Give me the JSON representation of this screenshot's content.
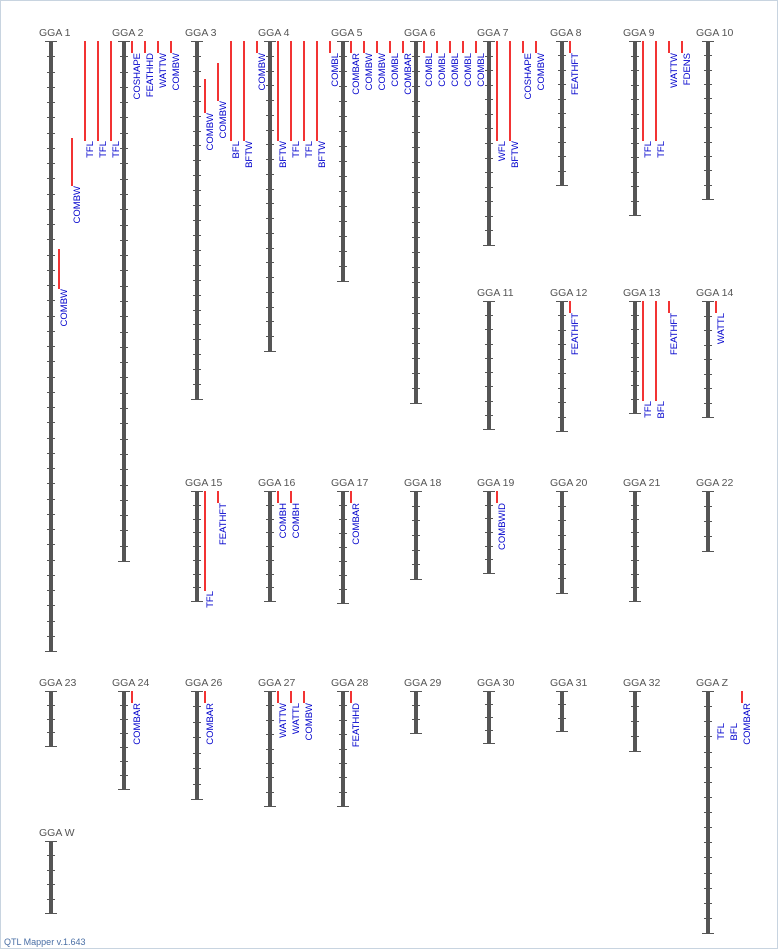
{
  "app": {
    "version_label": "QTL Mapper v.1.643"
  },
  "colors": {
    "chromosome": "#555555",
    "tick": "#555555",
    "qtl_bar": "#ee0000",
    "qtl_text": "#0000cc",
    "chr_text": "#555555"
  },
  "chromosomes": [
    {
      "id": "GGA 1",
      "label": "GGA 1",
      "row": 0,
      "col": 0,
      "length": 610,
      "ticks": 40,
      "qtls": [
        {
          "trait": "TFL",
          "start": 0,
          "end": 100,
          "offset": 34
        },
        {
          "trait": "TFL",
          "start": 0,
          "end": 100,
          "offset": 47
        },
        {
          "trait": "TFL",
          "start": 0,
          "end": 100,
          "offset": 60
        },
        {
          "trait": "COMBW",
          "start": 97,
          "end": 145,
          "offset": 21
        },
        {
          "trait": "COMBW",
          "start": 208,
          "end": 248,
          "offset": 8
        }
      ]
    },
    {
      "id": "GGA 2",
      "label": "GGA 2",
      "row": 0,
      "col": 1,
      "length": 520,
      "ticks": 34,
      "qtls": [
        {
          "trait": "COSHAPE",
          "start": 0,
          "end": 12,
          "offset": 8
        },
        {
          "trait": "FEATHHD",
          "start": 0,
          "end": 12,
          "offset": 21
        },
        {
          "trait": "WATTW",
          "start": 0,
          "end": 12,
          "offset": 34
        },
        {
          "trait": "COMBW",
          "start": 0,
          "end": 12,
          "offset": 47
        }
      ]
    },
    {
      "id": "GGA 3",
      "label": "GGA 3",
      "row": 0,
      "col": 2,
      "length": 358,
      "ticks": 24,
      "qtls": [
        {
          "trait": "COMBW",
          "start": 38,
          "end": 72,
          "offset": 8
        },
        {
          "trait": "COMBW",
          "start": 22,
          "end": 60,
          "offset": 21
        },
        {
          "trait": "BFL",
          "start": 0,
          "end": 100,
          "offset": 34
        },
        {
          "trait": "BFTW",
          "start": 0,
          "end": 100,
          "offset": 47
        },
        {
          "trait": "COMBW",
          "start": 0,
          "end": 12,
          "offset": 60
        }
      ]
    },
    {
      "id": "GGA 4",
      "label": "GGA 4",
      "row": 0,
      "col": 3,
      "length": 310,
      "ticks": 21,
      "qtls": [
        {
          "trait": "BFTW",
          "start": 0,
          "end": 100,
          "offset": 8
        },
        {
          "trait": "TFL",
          "start": 0,
          "end": 100,
          "offset": 21
        },
        {
          "trait": "TFL",
          "start": 0,
          "end": 100,
          "offset": 34
        },
        {
          "trait": "BFTW",
          "start": 0,
          "end": 100,
          "offset": 47
        },
        {
          "trait": "COMBL",
          "start": 0,
          "end": 12,
          "offset": 60
        }
      ]
    },
    {
      "id": "GGA 5",
      "label": "GGA 5",
      "row": 0,
      "col": 4,
      "length": 240,
      "ticks": 16,
      "qtls": [
        {
          "trait": "COMBAR",
          "start": 0,
          "end": 12,
          "offset": 8
        },
        {
          "trait": "COMBW",
          "start": 0,
          "end": 12,
          "offset": 21
        },
        {
          "trait": "COMBW",
          "start": 0,
          "end": 12,
          "offset": 34
        },
        {
          "trait": "COMBL",
          "start": 0,
          "end": 12,
          "offset": 47
        },
        {
          "trait": "COMBAR",
          "start": 0,
          "end": 12,
          "offset": 60
        }
      ]
    },
    {
      "id": "GGA 6",
      "label": "GGA 6",
      "row": 0,
      "col": 5,
      "length": 362,
      "ticks": 24,
      "qtls": [
        {
          "trait": "COMBL",
          "start": 0,
          "end": 12,
          "offset": 8
        },
        {
          "trait": "COMBL",
          "start": 0,
          "end": 12,
          "offset": 21
        },
        {
          "trait": "COMBL",
          "start": 0,
          "end": 12,
          "offset": 34
        },
        {
          "trait": "COMBL",
          "start": 0,
          "end": 12,
          "offset": 47
        },
        {
          "trait": "COMBL",
          "start": 0,
          "end": 12,
          "offset": 60
        }
      ]
    },
    {
      "id": "GGA 7",
      "label": "GGA 7",
      "row": 0,
      "col": 6,
      "length": 204,
      "ticks": 14,
      "qtls": [
        {
          "trait": "WFL",
          "start": 0,
          "end": 100,
          "offset": 8
        },
        {
          "trait": "BFTW",
          "start": 0,
          "end": 100,
          "offset": 21
        },
        {
          "trait": "COSHAPE",
          "start": 0,
          "end": 12,
          "offset": 34
        },
        {
          "trait": "COMBW",
          "start": 0,
          "end": 12,
          "offset": 47
        }
      ]
    },
    {
      "id": "GGA 8",
      "label": "GGA 8",
      "row": 0,
      "col": 7,
      "length": 144,
      "ticks": 10,
      "qtls": [
        {
          "trait": "FEATHFT",
          "start": 0,
          "end": 12,
          "offset": 8
        }
      ]
    },
    {
      "id": "GGA 9",
      "label": "GGA 9",
      "row": 0,
      "col": 8,
      "length": 174,
      "ticks": 12,
      "qtls": [
        {
          "trait": "TFL",
          "start": 0,
          "end": 100,
          "offset": 8
        },
        {
          "trait": "TFL",
          "start": 0,
          "end": 100,
          "offset": 21
        },
        {
          "trait": "WATTW",
          "start": 0,
          "end": 12,
          "offset": 34
        },
        {
          "trait": "FDENS",
          "start": 0,
          "end": 12,
          "offset": 47
        }
      ]
    },
    {
      "id": "GGA 10",
      "label": "GGA 10",
      "row": 0,
      "col": 9,
      "length": 158,
      "ticks": 11,
      "qtls": []
    },
    {
      "id": "GGA 11",
      "label": "GGA 11",
      "row": 1,
      "col": 6,
      "length": 128,
      "ticks": 9,
      "qtls": []
    },
    {
      "id": "GGA 12",
      "label": "GGA 12",
      "row": 1,
      "col": 7,
      "length": 130,
      "ticks": 9,
      "qtls": [
        {
          "trait": "FEATHFT",
          "start": 0,
          "end": 12,
          "offset": 8
        }
      ]
    },
    {
      "id": "GGA 13",
      "label": "GGA 13",
      "row": 1,
      "col": 8,
      "length": 112,
      "ticks": 8,
      "qtls": [
        {
          "trait": "TFL",
          "start": 0,
          "end": 100,
          "offset": 8
        },
        {
          "trait": "BFL",
          "start": 0,
          "end": 100,
          "offset": 21
        },
        {
          "trait": "FEATHFT",
          "start": 0,
          "end": 12,
          "offset": 34
        }
      ]
    },
    {
      "id": "GGA 14",
      "label": "GGA 14",
      "row": 1,
      "col": 9,
      "length": 116,
      "ticks": 8,
      "qtls": [
        {
          "trait": "WATTL",
          "start": 0,
          "end": 12,
          "offset": 8
        }
      ]
    },
    {
      "id": "GGA 15",
      "label": "GGA 15",
      "row": 2,
      "col": 2,
      "length": 110,
      "ticks": 8,
      "qtls": [
        {
          "trait": "TFL",
          "start": 0,
          "end": 100,
          "offset": 8
        },
        {
          "trait": "FEATHFT",
          "start": 0,
          "end": 12,
          "offset": 21
        }
      ]
    },
    {
      "id": "GGA 16",
      "label": "GGA 16",
      "row": 2,
      "col": 3,
      "length": 110,
      "ticks": 8,
      "qtls": [
        {
          "trait": "COMBH",
          "start": 0,
          "end": 12,
          "offset": 8
        },
        {
          "trait": "COMBH",
          "start": 0,
          "end": 12,
          "offset": 21
        }
      ]
    },
    {
      "id": "GGA 17",
      "label": "GGA 17",
      "row": 2,
      "col": 4,
      "length": 112,
      "ticks": 8,
      "qtls": [
        {
          "trait": "COMBAR",
          "start": 0,
          "end": 12,
          "offset": 8
        }
      ]
    },
    {
      "id": "GGA 18",
      "label": "GGA 18",
      "row": 2,
      "col": 5,
      "length": 88,
      "ticks": 6,
      "qtls": []
    },
    {
      "id": "GGA 19",
      "label": "GGA 19",
      "row": 2,
      "col": 6,
      "length": 82,
      "ticks": 6,
      "qtls": [
        {
          "trait": "COMBWID",
          "start": 0,
          "end": 12,
          "offset": 8
        }
      ]
    },
    {
      "id": "GGA 20",
      "label": "GGA 20",
      "row": 2,
      "col": 7,
      "length": 102,
      "ticks": 7,
      "qtls": []
    },
    {
      "id": "GGA 21",
      "label": "GGA 21",
      "row": 2,
      "col": 8,
      "length": 110,
      "ticks": 8,
      "qtls": []
    },
    {
      "id": "GGA 22",
      "label": "GGA 22",
      "row": 2,
      "col": 9,
      "length": 60,
      "ticks": 4,
      "qtls": []
    },
    {
      "id": "GGA 23",
      "label": "GGA 23",
      "row": 3,
      "col": 0,
      "length": 55,
      "ticks": 4,
      "qtls": []
    },
    {
      "id": "GGA 24",
      "label": "GGA 24",
      "row": 3,
      "col": 1,
      "length": 98,
      "ticks": 7,
      "qtls": [
        {
          "trait": "COMBAR",
          "start": 0,
          "end": 12,
          "offset": 8
        }
      ]
    },
    {
      "id": "GGA 26",
      "label": "GGA 26",
      "row": 3,
      "col": 2,
      "length": 108,
      "ticks": 7,
      "qtls": [
        {
          "trait": "COMBAR",
          "start": 0,
          "end": 12,
          "offset": 8
        }
      ]
    },
    {
      "id": "GGA 27",
      "label": "GGA 27",
      "row": 3,
      "col": 3,
      "length": 115,
      "ticks": 8,
      "qtls": [
        {
          "trait": "WATTW",
          "start": 0,
          "end": 12,
          "offset": 8
        },
        {
          "trait": "WATTL",
          "start": 0,
          "end": 12,
          "offset": 21
        },
        {
          "trait": "COMBW",
          "start": 0,
          "end": 12,
          "offset": 34
        }
      ]
    },
    {
      "id": "GGA 28",
      "label": "GGA 28",
      "row": 3,
      "col": 4,
      "length": 115,
      "ticks": 8,
      "qtls": [
        {
          "trait": "FEATHHD",
          "start": 0,
          "end": 12,
          "offset": 8
        }
      ]
    },
    {
      "id": "GGA 29",
      "label": "GGA 29",
      "row": 3,
      "col": 5,
      "length": 42,
      "ticks": 3,
      "qtls": []
    },
    {
      "id": "GGA 30",
      "label": "GGA 30",
      "row": 3,
      "col": 6,
      "length": 52,
      "ticks": 4,
      "qtls": []
    },
    {
      "id": "GGA 31",
      "label": "GGA 31",
      "row": 3,
      "col": 7,
      "length": 40,
      "ticks": 3,
      "qtls": []
    },
    {
      "id": "GGA 32",
      "label": "GGA 32",
      "row": 3,
      "col": 8,
      "length": 60,
      "ticks": 4,
      "qtls": []
    },
    {
      "id": "GGA Z",
      "label": "GGA Z",
      "row": 3,
      "col": 9,
      "length": 242,
      "ticks": 16,
      "qtls": [
        {
          "trait": "TFL",
          "start": 32,
          "end": 32,
          "offset": 8
        },
        {
          "trait": "BFL",
          "start": 32,
          "end": 32,
          "offset": 21
        },
        {
          "trait": "COMBAR",
          "start": 0,
          "end": 12,
          "offset": 34
        }
      ]
    },
    {
      "id": "GGA W",
      "label": "GGA W",
      "row": 4,
      "col": 0,
      "length": 72,
      "ticks": 5,
      "qtls": []
    }
  ]
}
